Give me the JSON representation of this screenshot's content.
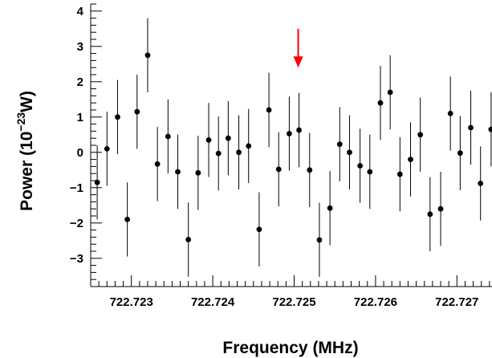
{
  "chart_data": {
    "type": "scatter",
    "xlabel": "Frequency (MHz)",
    "ylabel": {
      "prefix": "Power (10",
      "exponent": "−23",
      "suffix": "W)"
    },
    "xlim": [
      722.7225,
      722.7275
    ],
    "ylim": [
      -3.8,
      4.2
    ],
    "x_ticks": [
      {
        "value": 722.723,
        "label": "722.723"
      },
      {
        "value": 722.724,
        "label": "722.724"
      },
      {
        "value": 722.725,
        "label": "722.725"
      },
      {
        "value": 722.726,
        "label": "722.726"
      },
      {
        "value": 722.727,
        "label": "722.727"
      }
    ],
    "y_ticks": [
      {
        "value": -3,
        "label": "−3"
      },
      {
        "value": -2,
        "label": "−2"
      },
      {
        "value": -1,
        "label": "−1"
      },
      {
        "value": 0,
        "label": "0"
      },
      {
        "value": 1,
        "label": "1"
      },
      {
        "value": 2,
        "label": "2"
      },
      {
        "value": 3,
        "label": "3"
      },
      {
        "value": 4,
        "label": "4"
      }
    ],
    "grid": false,
    "marker_color": "#000000",
    "annotation": {
      "type": "arrow",
      "color": "#ff0000",
      "x": 722.72505,
      "y_from": 3.5,
      "y_to": 2.4
    },
    "points": [
      {
        "x": 722.72258,
        "y": -0.85,
        "err": 1.05
      },
      {
        "x": 722.7227,
        "y": 0.1,
        "err": 1.05
      },
      {
        "x": 722.72283,
        "y": 1.0,
        "err": 1.05
      },
      {
        "x": 722.72295,
        "y": -1.9,
        "err": 1.05
      },
      {
        "x": 722.72307,
        "y": 1.15,
        "err": 1.05
      },
      {
        "x": 722.7232,
        "y": 2.75,
        "err": 1.05
      },
      {
        "x": 722.72332,
        "y": -0.33,
        "err": 1.05
      },
      {
        "x": 722.72345,
        "y": 0.45,
        "err": 1.05
      },
      {
        "x": 722.72357,
        "y": -0.55,
        "err": 1.05
      },
      {
        "x": 722.7237,
        "y": -2.47,
        "err": 1.05
      },
      {
        "x": 722.72382,
        "y": -0.58,
        "err": 1.05
      },
      {
        "x": 722.72395,
        "y": 0.35,
        "err": 1.05
      },
      {
        "x": 722.72407,
        "y": -0.03,
        "err": 1.05
      },
      {
        "x": 722.72419,
        "y": 0.4,
        "err": 1.05
      },
      {
        "x": 722.72432,
        "y": 0.0,
        "err": 1.05
      },
      {
        "x": 722.72444,
        "y": 0.18,
        "err": 1.05
      },
      {
        "x": 722.72457,
        "y": -2.18,
        "err": 1.05
      },
      {
        "x": 722.72469,
        "y": 1.2,
        "err": 1.05
      },
      {
        "x": 722.72481,
        "y": -0.48,
        "err": 1.05
      },
      {
        "x": 722.72494,
        "y": 0.53,
        "err": 1.05
      },
      {
        "x": 722.72506,
        "y": 0.63,
        "err": 1.05
      },
      {
        "x": 722.72519,
        "y": -0.5,
        "err": 1.05
      },
      {
        "x": 722.72531,
        "y": -2.48,
        "err": 1.05
      },
      {
        "x": 722.72544,
        "y": -1.58,
        "err": 1.05
      },
      {
        "x": 722.72556,
        "y": 0.23,
        "err": 1.05
      },
      {
        "x": 722.72568,
        "y": 0.0,
        "err": 1.05
      },
      {
        "x": 722.72581,
        "y": -0.38,
        "err": 1.05
      },
      {
        "x": 722.72593,
        "y": -0.55,
        "err": 1.05
      },
      {
        "x": 722.72606,
        "y": 1.4,
        "err": 1.05
      },
      {
        "x": 722.72618,
        "y": 1.7,
        "err": 1.05
      },
      {
        "x": 722.7263,
        "y": -0.62,
        "err": 1.05
      },
      {
        "x": 722.72643,
        "y": -0.2,
        "err": 1.05
      },
      {
        "x": 722.72655,
        "y": 0.5,
        "err": 1.05
      },
      {
        "x": 722.72667,
        "y": -1.75,
        "err": 1.05
      },
      {
        "x": 722.7268,
        "y": -1.6,
        "err": 1.05
      },
      {
        "x": 722.72692,
        "y": 1.1,
        "err": 1.05
      },
      {
        "x": 722.72704,
        "y": -0.02,
        "err": 1.05
      },
      {
        "x": 722.72717,
        "y": 0.7,
        "err": 1.05
      },
      {
        "x": 722.72729,
        "y": -0.88,
        "err": 1.05
      },
      {
        "x": 722.72742,
        "y": 0.65,
        "err": 1.05
      }
    ]
  }
}
